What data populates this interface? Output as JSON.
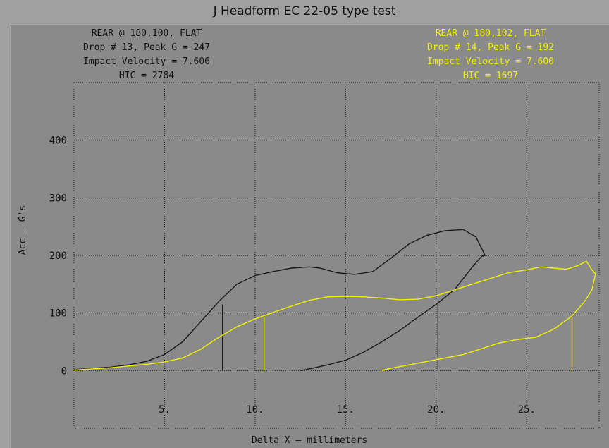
{
  "window": {
    "title": "J Headform   EC 22-05 type test"
  },
  "colors": {
    "background": "#a0a0a0",
    "plot_background": "#8a8a8a",
    "series_1": "#1a1a1a",
    "series_2": "#f2f200",
    "grid": "#1a1a1a"
  },
  "annotations": {
    "drop13": [
      "REAR @ 180,100, FLAT",
      "Drop # 13, Peak G = 247",
      "Impact Velocity = 7.606",
      "HIC = 2784"
    ],
    "drop14": [
      "REAR @ 180,102, FLAT",
      "Drop # 14, Peak G = 192",
      "Impact Velocity = 7.600",
      "HIC = 1697"
    ]
  },
  "chart_data": {
    "type": "line",
    "title": "J Headform   EC 22-05 type test",
    "xlabel": "Delta X – millimeters",
    "ylabel": "Acc – G's",
    "xlim": [
      0,
      29
    ],
    "ylim": [
      -100,
      500
    ],
    "x_ticks": [
      "5.",
      "10.",
      "15.",
      "20.",
      "25."
    ],
    "y_ticks": [
      "0",
      "100",
      "200",
      "300",
      "400"
    ],
    "grid": true,
    "series": [
      {
        "color": "#1a1a1a",
        "x": [
          0,
          1,
          2,
          3,
          4,
          5,
          6,
          7,
          8,
          9,
          10,
          11,
          12,
          13,
          13.6,
          14.5,
          15.5,
          16.5,
          17.5,
          18.5,
          19.5,
          20.5,
          21.5,
          22.2,
          22.7,
          22.5,
          22.0,
          21.5,
          21.0,
          20.0,
          19.0,
          18.0,
          17.0,
          16.0,
          15.0,
          14.0,
          13.0,
          12.5
        ],
        "y": [
          2,
          4,
          6,
          10,
          16,
          28,
          50,
          85,
          120,
          150,
          165,
          172,
          178,
          180,
          178,
          170,
          167,
          172,
          195,
          220,
          235,
          243,
          245,
          232,
          200,
          198,
          180,
          160,
          140,
          115,
          93,
          70,
          50,
          32,
          18,
          10,
          3,
          0
        ],
        "markers": [
          {
            "x": 8.2,
            "y": 115
          },
          {
            "x": 20.1,
            "y": 118
          }
        ]
      },
      {
        "color": "#f2f200",
        "x": [
          0,
          1,
          2,
          3,
          4,
          5,
          6,
          7,
          8,
          9,
          10,
          11,
          12,
          13,
          14,
          15,
          16,
          17,
          18,
          19,
          20,
          21,
          22,
          23,
          24,
          25,
          25.8,
          26.5,
          27.2,
          27.8,
          28.3,
          28.6,
          28.8,
          28.6,
          28.2,
          27.5,
          26.5,
          25.5,
          24.5,
          23.5,
          22.5,
          21.5,
          20.5,
          19.5,
          18.5,
          17.5,
          17.0
        ],
        "y": [
          1,
          3,
          5,
          8,
          11,
          15,
          22,
          37,
          58,
          76,
          90,
          101,
          112,
          122,
          128,
          129,
          128,
          126,
          123,
          124,
          130,
          140,
          150,
          160,
          170,
          175,
          180,
          178,
          176,
          182,
          190,
          175,
          168,
          140,
          120,
          95,
          72,
          58,
          54,
          48,
          38,
          28,
          22,
          16,
          10,
          4,
          0
        ],
        "markers": [
          {
            "x": 10.5,
            "y": 93
          },
          {
            "x": 27.5,
            "y": 93
          }
        ]
      }
    ]
  }
}
